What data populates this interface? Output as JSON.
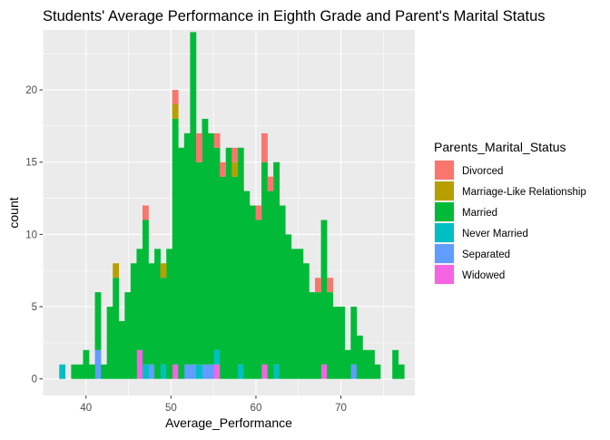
{
  "chart_data": {
    "type": "bar",
    "subtype": "stacked-histogram",
    "title": "Students' Average Performance in Eighth Grade and Parent's Marital Status",
    "xlabel": "Average_Performance",
    "ylabel": "count",
    "xlim": [
      34.9,
      78.7
    ],
    "ylim": [
      -1.15,
      24.15
    ],
    "bin_width": 0.7,
    "x_ticks": [
      40,
      50,
      60,
      70
    ],
    "y_ticks": [
      0,
      5,
      10,
      15,
      20
    ],
    "x_tick_labels": [
      "40",
      "50",
      "60",
      "70"
    ],
    "y_tick_labels": [
      "0",
      "5",
      "10",
      "15",
      "20"
    ],
    "grid": true,
    "background": "#ebebeb",
    "grid_color": "#ffffff",
    "legend": {
      "title": "Parents_Marital_Status",
      "position": "right"
    },
    "series": [
      {
        "name": "Divorced",
        "color": "#F8766D",
        "points": [
          [
            47.0,
            1
          ],
          [
            50.5,
            1
          ],
          [
            53.3,
            2
          ],
          [
            55.4,
            1
          ],
          [
            56.1,
            1
          ],
          [
            57.5,
            1
          ],
          [
            60.3,
            1
          ],
          [
            61.0,
            2
          ],
          [
            61.7,
            1
          ],
          [
            67.3,
            1
          ],
          [
            68.7,
            1
          ]
        ]
      },
      {
        "name": "Marriage-Like Relationship",
        "color": "#B79F00",
        "points": [
          [
            43.5,
            1
          ],
          [
            49.1,
            1
          ],
          [
            50.5,
            1
          ],
          [
            57.5,
            1
          ]
        ]
      },
      {
        "name": "Married",
        "color": "#00BA38",
        "points": [
          [
            38.6,
            1
          ],
          [
            39.3,
            1
          ],
          [
            40.0,
            2
          ],
          [
            40.7,
            1
          ],
          [
            41.4,
            4
          ],
          [
            42.1,
            1
          ],
          [
            42.8,
            5
          ],
          [
            43.5,
            7
          ],
          [
            44.2,
            4
          ],
          [
            44.9,
            6
          ],
          [
            45.6,
            8
          ],
          [
            46.3,
            7
          ],
          [
            47.0,
            10
          ],
          [
            47.7,
            7
          ],
          [
            48.4,
            9
          ],
          [
            49.1,
            6
          ],
          [
            49.8,
            9
          ],
          [
            50.5,
            17
          ],
          [
            51.2,
            16
          ],
          [
            51.9,
            16
          ],
          [
            52.6,
            23
          ],
          [
            53.3,
            14
          ],
          [
            54.0,
            17
          ],
          [
            54.7,
            16
          ],
          [
            55.4,
            14
          ],
          [
            56.1,
            14
          ],
          [
            56.8,
            16
          ],
          [
            57.5,
            14
          ],
          [
            58.2,
            15
          ],
          [
            58.9,
            13
          ],
          [
            59.6,
            12
          ],
          [
            60.3,
            11
          ],
          [
            61.0,
            14
          ],
          [
            61.7,
            13
          ],
          [
            62.4,
            14
          ],
          [
            63.1,
            12
          ],
          [
            63.8,
            10
          ],
          [
            64.5,
            9
          ],
          [
            65.2,
            9
          ],
          [
            65.9,
            8
          ],
          [
            66.6,
            6
          ],
          [
            67.3,
            6
          ],
          [
            68.0,
            10
          ],
          [
            68.7,
            6
          ],
          [
            69.4,
            5
          ],
          [
            70.1,
            5
          ],
          [
            70.8,
            2
          ],
          [
            71.5,
            4
          ],
          [
            72.2,
            3
          ],
          [
            72.9,
            2
          ],
          [
            73.6,
            2
          ],
          [
            74.3,
            1
          ],
          [
            76.4,
            2
          ],
          [
            77.1,
            1
          ]
        ]
      },
      {
        "name": "Never Married",
        "color": "#00BFC4",
        "points": [
          [
            37.2,
            1
          ],
          [
            47.0,
            1
          ],
          [
            49.1,
            1
          ],
          [
            53.3,
            1
          ],
          [
            55.4,
            1
          ],
          [
            58.2,
            1
          ],
          [
            62.4,
            1
          ]
        ]
      },
      {
        "name": "Separated",
        "color": "#619CFF",
        "points": [
          [
            41.4,
            2
          ],
          [
            47.7,
            1
          ],
          [
            51.9,
            1
          ],
          [
            52.6,
            1
          ],
          [
            54.0,
            1
          ],
          [
            54.7,
            1
          ],
          [
            71.5,
            1
          ]
        ]
      },
      {
        "name": "Widowed",
        "color": "#F564E3",
        "points": [
          [
            46.3,
            2
          ],
          [
            50.5,
            1
          ],
          [
            55.4,
            1
          ],
          [
            61.0,
            1
          ],
          [
            68.0,
            1
          ]
        ]
      }
    ]
  }
}
